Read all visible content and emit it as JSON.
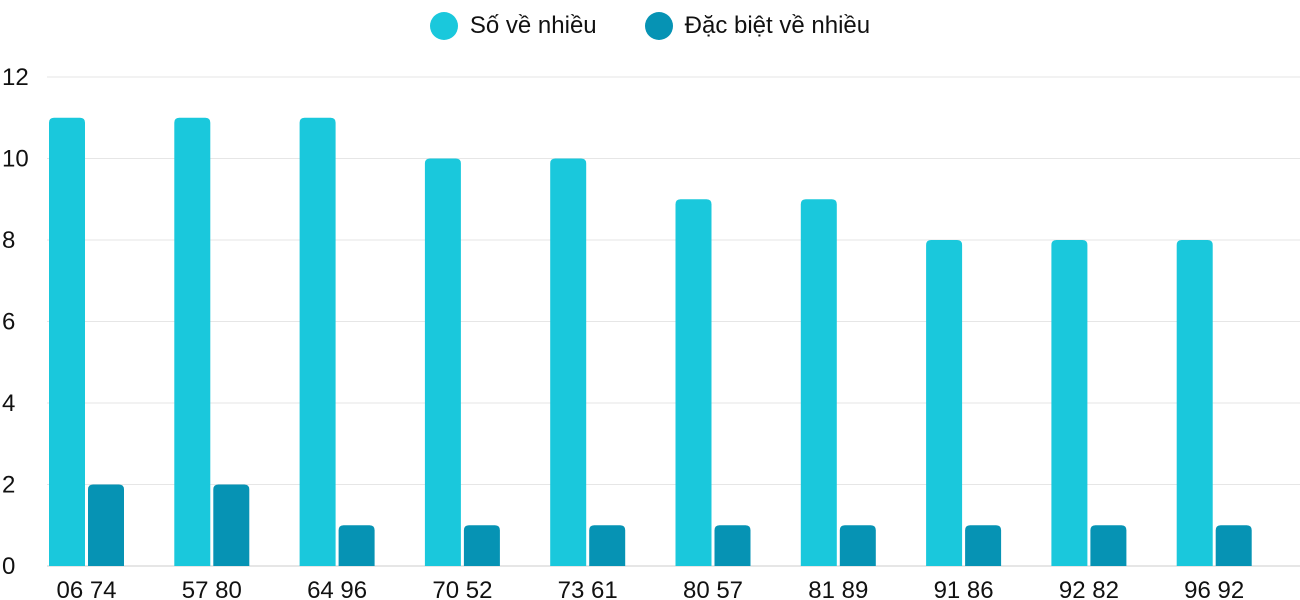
{
  "chart_data": {
    "type": "bar",
    "categories": [
      "06 74",
      "57 80",
      "64 96",
      "70 52",
      "73 61",
      "80 57",
      "81 89",
      "91 86",
      "92 82",
      "96 92"
    ],
    "series": [
      {
        "name": "Số về nhiều",
        "values": [
          11,
          11,
          11,
          10,
          10,
          9,
          9,
          8,
          8,
          8
        ],
        "color": "#1ac8dc"
      },
      {
        "name": "Đặc biệt về nhiều",
        "values": [
          2,
          2,
          1,
          1,
          1,
          1,
          1,
          1,
          1,
          1
        ],
        "color": "#0693b4"
      }
    ],
    "yticks": [
      "0",
      "2",
      "4",
      "6",
      "8",
      "10",
      "12"
    ],
    "ylim": [
      0,
      12
    ],
    "grid": true,
    "legend_position": "top-center",
    "gridline_color": "#e6e6e6",
    "baseline_color": "#cccccc"
  }
}
